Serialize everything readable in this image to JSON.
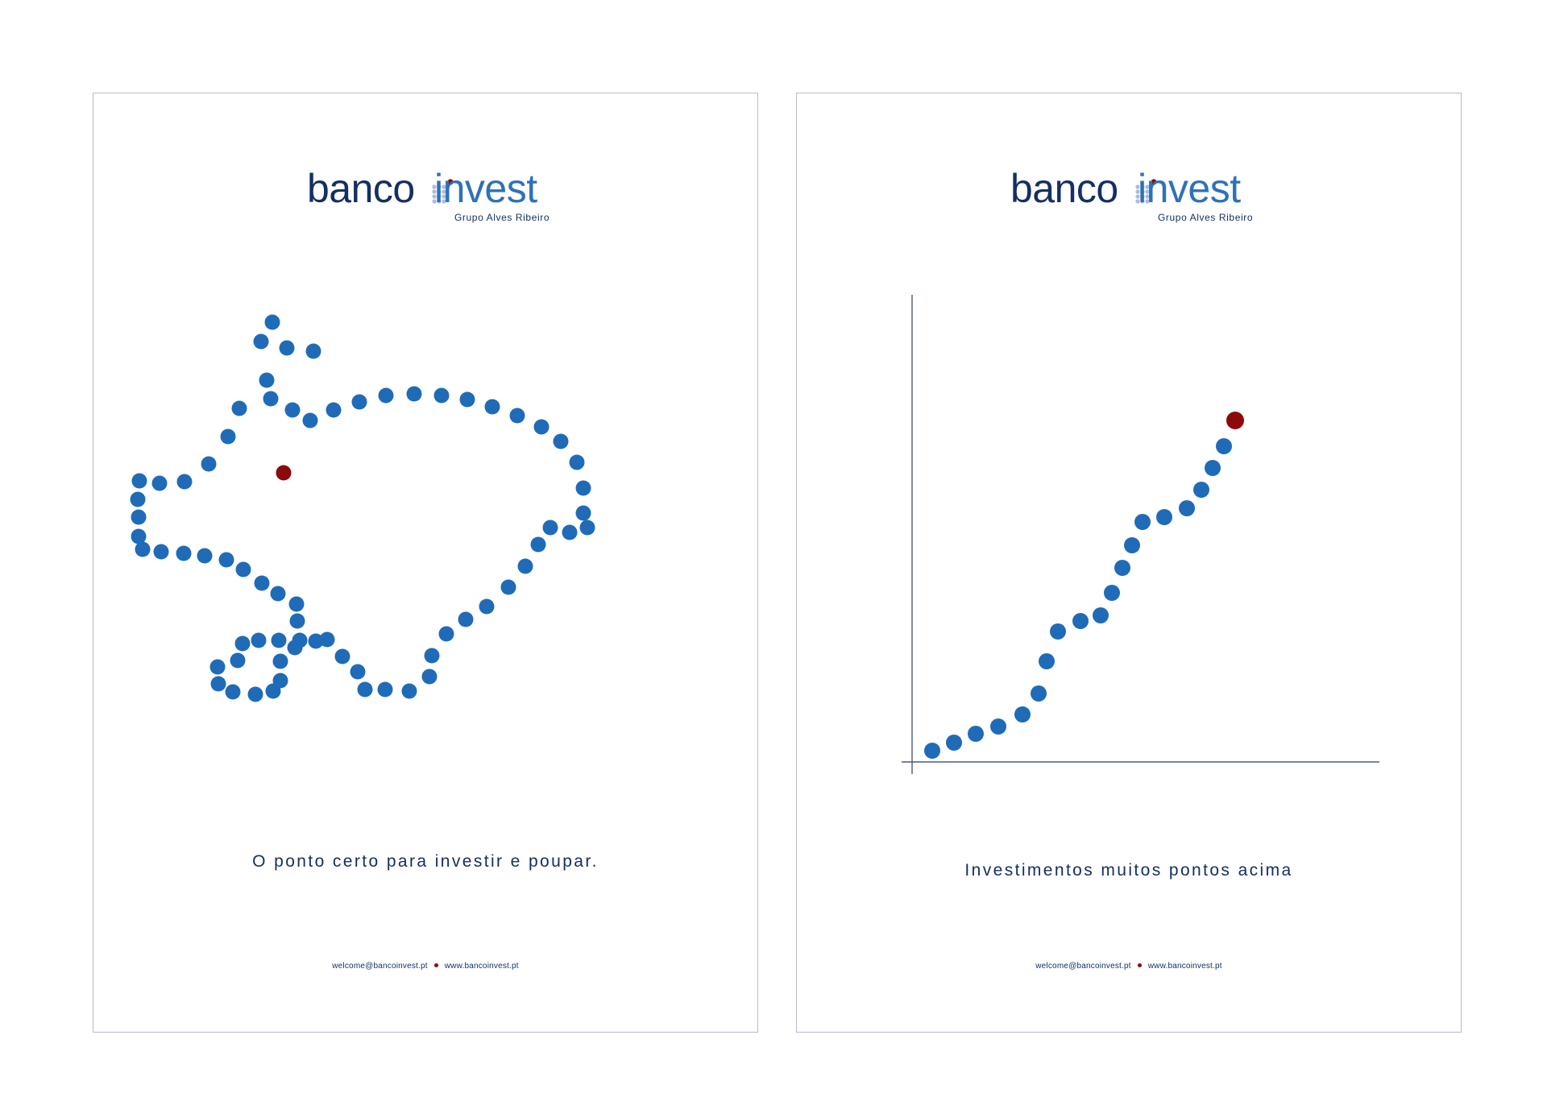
{
  "colors": {
    "navy": "#142f64",
    "blue": "#1f6bb8",
    "accent_red": "#8c0a0a",
    "border": "#b7bccb"
  },
  "posters": [
    {
      "logo": {
        "word1": "banco",
        "word2": "invest",
        "tagline": "Grupo Alves Ribeiro"
      },
      "illustration": "piggy-bank made of blue dots with a red dot as the eye",
      "slogan": "O ponto certo para investir e poupar.",
      "footer": {
        "email": "welcome@bancoinvest.pt",
        "website": "www.bancoinvest.pt"
      }
    },
    {
      "logo": {
        "word1": "banco",
        "word2": "invest",
        "tagline": "Grupo Alves Ribeiro"
      },
      "illustration": "rising dotted line on axes ending in a red dot",
      "slogan": "Investimentos muitos pontos acima",
      "footer": {
        "email": "welcome@bancoinvest.pt",
        "website": "www.bancoinvest.pt"
      }
    }
  ]
}
